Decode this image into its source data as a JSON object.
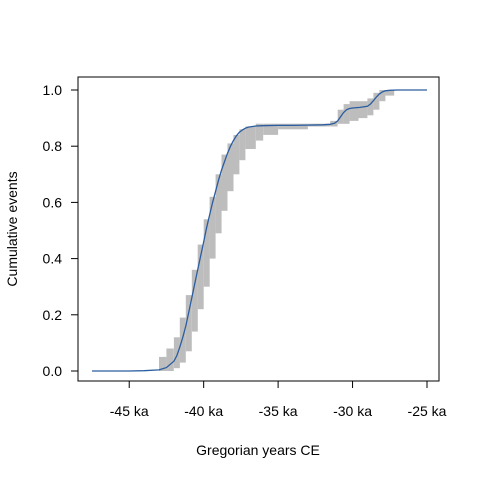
{
  "chart_data": {
    "type": "line",
    "xlabel": "Gregorian years CE",
    "ylabel": "Cumulative events",
    "xlim": [
      -48000,
      -24500
    ],
    "ylim": [
      0,
      1
    ],
    "x_ticks": [
      -45000,
      -40000,
      -35000,
      -30000,
      -25000
    ],
    "x_tick_labels": [
      "-45 ka",
      "-40 ka",
      "-35 ka",
      "-30 ka",
      "-25 ka"
    ],
    "y_ticks": [
      0.0,
      0.2,
      0.4,
      0.6,
      0.8,
      1.0
    ],
    "y_tick_labels": [
      "0.0",
      "0.2",
      "0.4",
      "0.6",
      "0.8",
      "1.0"
    ],
    "grid": false,
    "legend": "none",
    "colors": {
      "curve": "#2a5da0",
      "band": "#bdbdbd",
      "axis": "#000000"
    },
    "series": [
      {
        "x": [
          -47500,
          -45000,
          -44000,
          -43000,
          -42500,
          -42000,
          -41800,
          -41600,
          -41400,
          -41200,
          -41000,
          -40800,
          -40600,
          -40400,
          -40200,
          -40000,
          -39800,
          -39600,
          -39400,
          -39200,
          -39000,
          -38800,
          -38600,
          -38400,
          -38200,
          -38000,
          -37800,
          -37600,
          -37400,
          -37200,
          -37000,
          -36500,
          -36000,
          -35000,
          -34000,
          -33000,
          -32000,
          -31500,
          -31200,
          -31000,
          -30800,
          -30600,
          -30400,
          -30200,
          -30000,
          -29500,
          -29000,
          -28800,
          -28600,
          -28400,
          -28200,
          -28000,
          -27800,
          -27500,
          -27000,
          -25000
        ],
        "y": [
          0.0,
          0.0,
          0.001,
          0.004,
          0.012,
          0.035,
          0.055,
          0.085,
          0.12,
          0.16,
          0.21,
          0.26,
          0.31,
          0.36,
          0.41,
          0.46,
          0.51,
          0.555,
          0.6,
          0.64,
          0.68,
          0.715,
          0.745,
          0.775,
          0.8,
          0.82,
          0.837,
          0.85,
          0.858,
          0.864,
          0.868,
          0.872,
          0.873,
          0.874,
          0.874,
          0.875,
          0.876,
          0.878,
          0.882,
          0.89,
          0.905,
          0.92,
          0.93,
          0.934,
          0.936,
          0.938,
          0.942,
          0.95,
          0.962,
          0.975,
          0.986,
          0.993,
          0.997,
          0.999,
          1.0,
          1.0
        ]
      }
    ],
    "band": {
      "x": [
        -43000,
        -42500,
        -42000,
        -41600,
        -41200,
        -40800,
        -40400,
        -40000,
        -39600,
        -39200,
        -38800,
        -38400,
        -38000,
        -37600,
        -37200,
        -36500,
        -36000,
        -35000,
        -33000,
        -31500,
        -31000,
        -30600,
        -30200,
        -29600,
        -29000,
        -28600,
        -28200,
        -27800,
        -27200
      ],
      "low": [
        0.0,
        0.0,
        0.01,
        0.03,
        0.07,
        0.14,
        0.22,
        0.3,
        0.4,
        0.49,
        0.57,
        0.64,
        0.7,
        0.75,
        0.79,
        0.82,
        0.84,
        0.86,
        0.87,
        0.87,
        0.88,
        0.88,
        0.89,
        0.9,
        0.91,
        0.93,
        0.96,
        0.98,
        0.99
      ],
      "high": [
        0.05,
        0.08,
        0.12,
        0.19,
        0.27,
        0.36,
        0.45,
        0.54,
        0.62,
        0.7,
        0.77,
        0.81,
        0.84,
        0.86,
        0.87,
        0.88,
        0.88,
        0.88,
        0.88,
        0.89,
        0.93,
        0.95,
        0.96,
        0.96,
        0.97,
        0.99,
        1.0,
        1.0,
        1.0
      ]
    }
  }
}
